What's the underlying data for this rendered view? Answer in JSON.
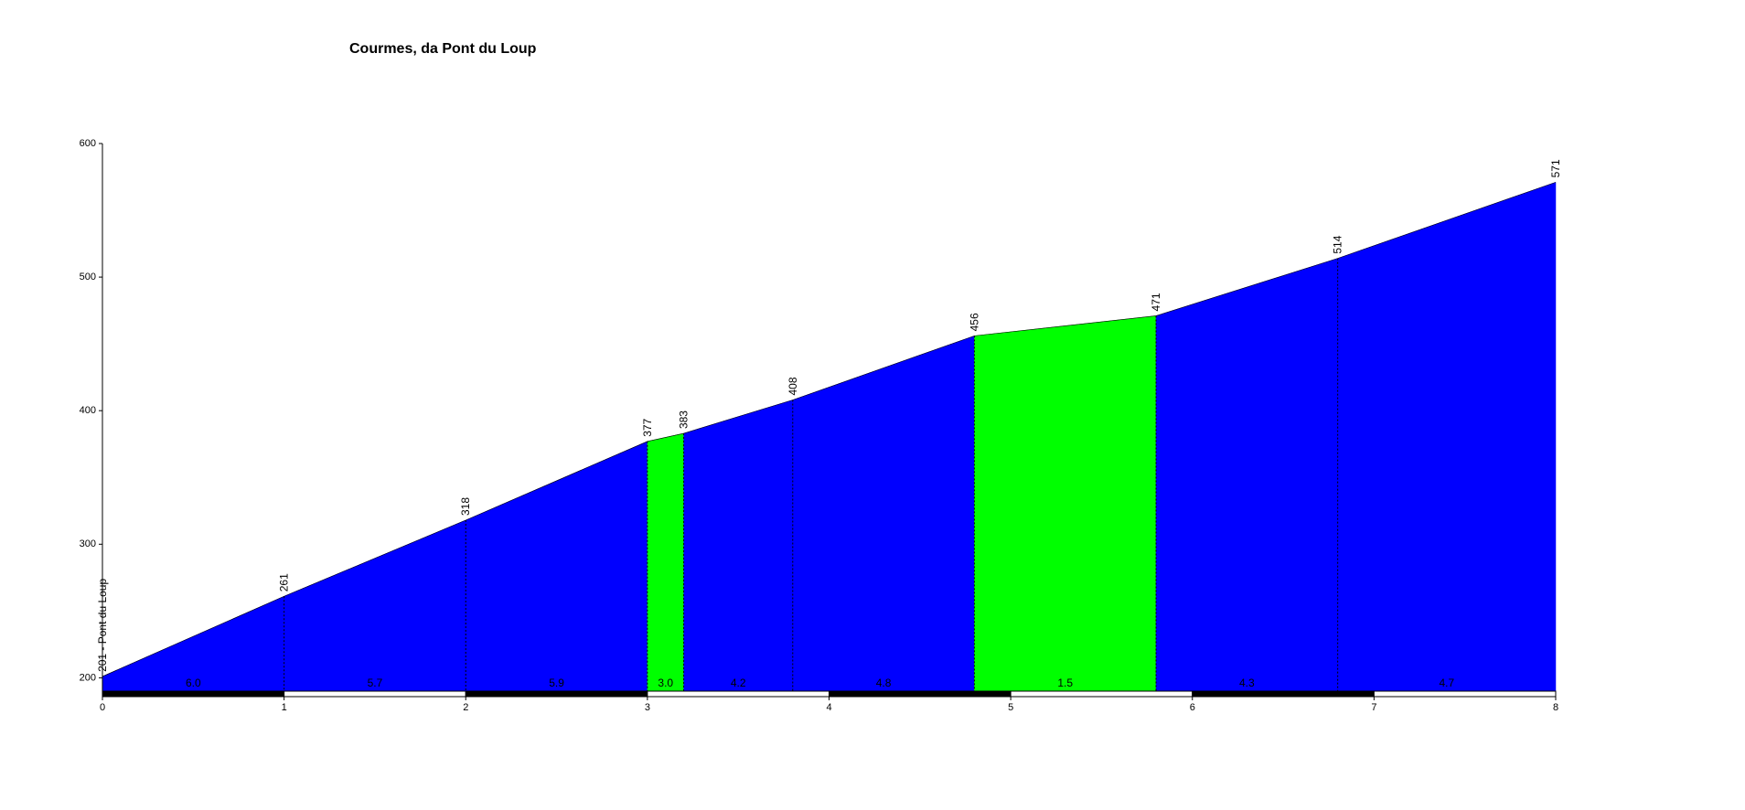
{
  "chart_data": {
    "type": "area",
    "title": "Courmes, da Pont du  Loup",
    "x": [
      0,
      1,
      2,
      3,
      3.2,
      3.8,
      4.8,
      5.8,
      6.8,
      8
    ],
    "values": [
      201,
      261,
      318,
      377,
      383,
      408,
      456,
      471,
      514,
      571
    ],
    "value_labels": [
      "201 - Pont du Loup",
      "261",
      "318",
      "377",
      "383",
      "408",
      "456",
      "471",
      "514",
      "571"
    ],
    "segment_labels": [
      "6.0",
      "5.7",
      "5.9",
      "3.0",
      "4.2",
      "4.8",
      "1.5",
      "4.3",
      "4.7"
    ],
    "segment_colors": [
      "#0000ff",
      "#0000ff",
      "#0000ff",
      "#00ff00",
      "#0000ff",
      "#0000ff",
      "#00ff00",
      "#0000ff",
      "#0000ff"
    ],
    "xlim": [
      0,
      8
    ],
    "xticks": [
      0,
      1,
      2,
      3,
      4,
      5,
      6,
      7,
      8
    ],
    "ylim": [
      190,
      600
    ],
    "yticks": [
      200,
      300,
      400,
      500,
      600
    ]
  }
}
